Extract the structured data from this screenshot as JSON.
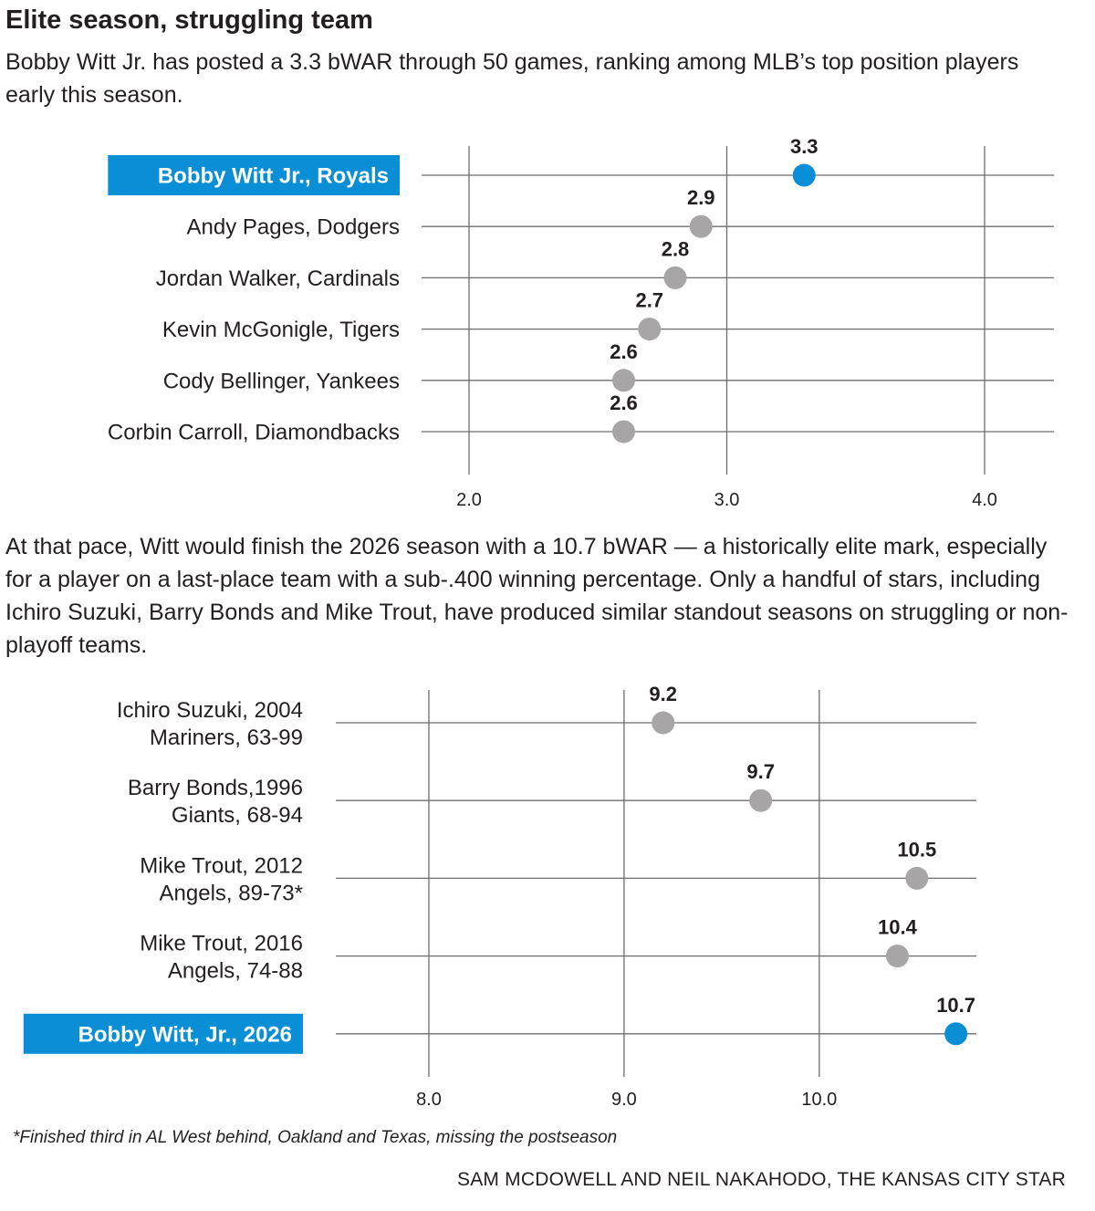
{
  "title": "Elite season, struggling team",
  "intro1": "Bobby Witt Jr. has posted a 3.3 bWAR through 50 games, ranking among MLB’s top position players early this season.",
  "intro2": "At that pace, Witt would finish the 2026 season with a 10.7 bWAR — a historically elite mark, especially for a player on a last-place team with a sub-.400 winning percentage. Only a handful of stars, including Ichiro Suzuki, Barry Bonds and Mike Trout, have produced similar standout seasons on struggling or non-playoff teams.",
  "footnote": "*Finished third in AL West behind, Oakland and Texas, missing the postseason",
  "credit": "SAM MCDOWELL AND NEIL NAKAHODO, THE KANSAS CITY STAR",
  "colors": {
    "highlight": "#0a8fd6",
    "dot": "#a7a5a5",
    "grid": "#6d6d6d",
    "text": "#231f20"
  },
  "chart_data": [
    {
      "type": "scatter",
      "title": "",
      "xlabel": "",
      "ylabel": "",
      "xlim": [
        2.0,
        4.0
      ],
      "xticks": [
        "2.0",
        "3.0",
        "4.0"
      ],
      "grid": true,
      "categories": [
        [
          "Bobby Witt Jr., Royals"
        ],
        [
          "Andy Pages, Dodgers"
        ],
        [
          "Jordan Walker, Cardinals"
        ],
        [
          "Kevin McGonigle, Tigers"
        ],
        [
          "Cody Bellinger, Yankees"
        ],
        [
          "Corbin Carroll, Diamondbacks"
        ]
      ],
      "values": [
        3.3,
        2.9,
        2.8,
        2.7,
        2.6,
        2.6
      ],
      "value_labels": [
        "3.3",
        "2.9",
        "2.8",
        "2.7",
        "2.6",
        "2.6"
      ],
      "highlight": [
        true,
        false,
        false,
        false,
        false,
        false
      ]
    },
    {
      "type": "scatter",
      "title": "",
      "xlabel": "",
      "ylabel": "",
      "xlim": [
        7.5,
        10.8
      ],
      "xticks": [
        "8.0",
        "9.0",
        "10.0"
      ],
      "grid": true,
      "categories": [
        [
          "Ichiro Suzuki, 2004",
          "Mariners, 63-99"
        ],
        [
          "Barry Bonds,1996",
          "Giants, 68-94"
        ],
        [
          "Mike Trout, 2012",
          "Angels, 89-73*"
        ],
        [
          "Mike Trout, 2016",
          "Angels, 74-88"
        ],
        [
          "Bobby Witt, Jr., 2026"
        ]
      ],
      "values": [
        9.2,
        9.7,
        10.5,
        10.4,
        10.7
      ],
      "value_labels": [
        "9.2",
        "9.7",
        "10.5",
        "10.4",
        "10.7"
      ],
      "highlight": [
        false,
        false,
        false,
        false,
        true
      ]
    }
  ]
}
